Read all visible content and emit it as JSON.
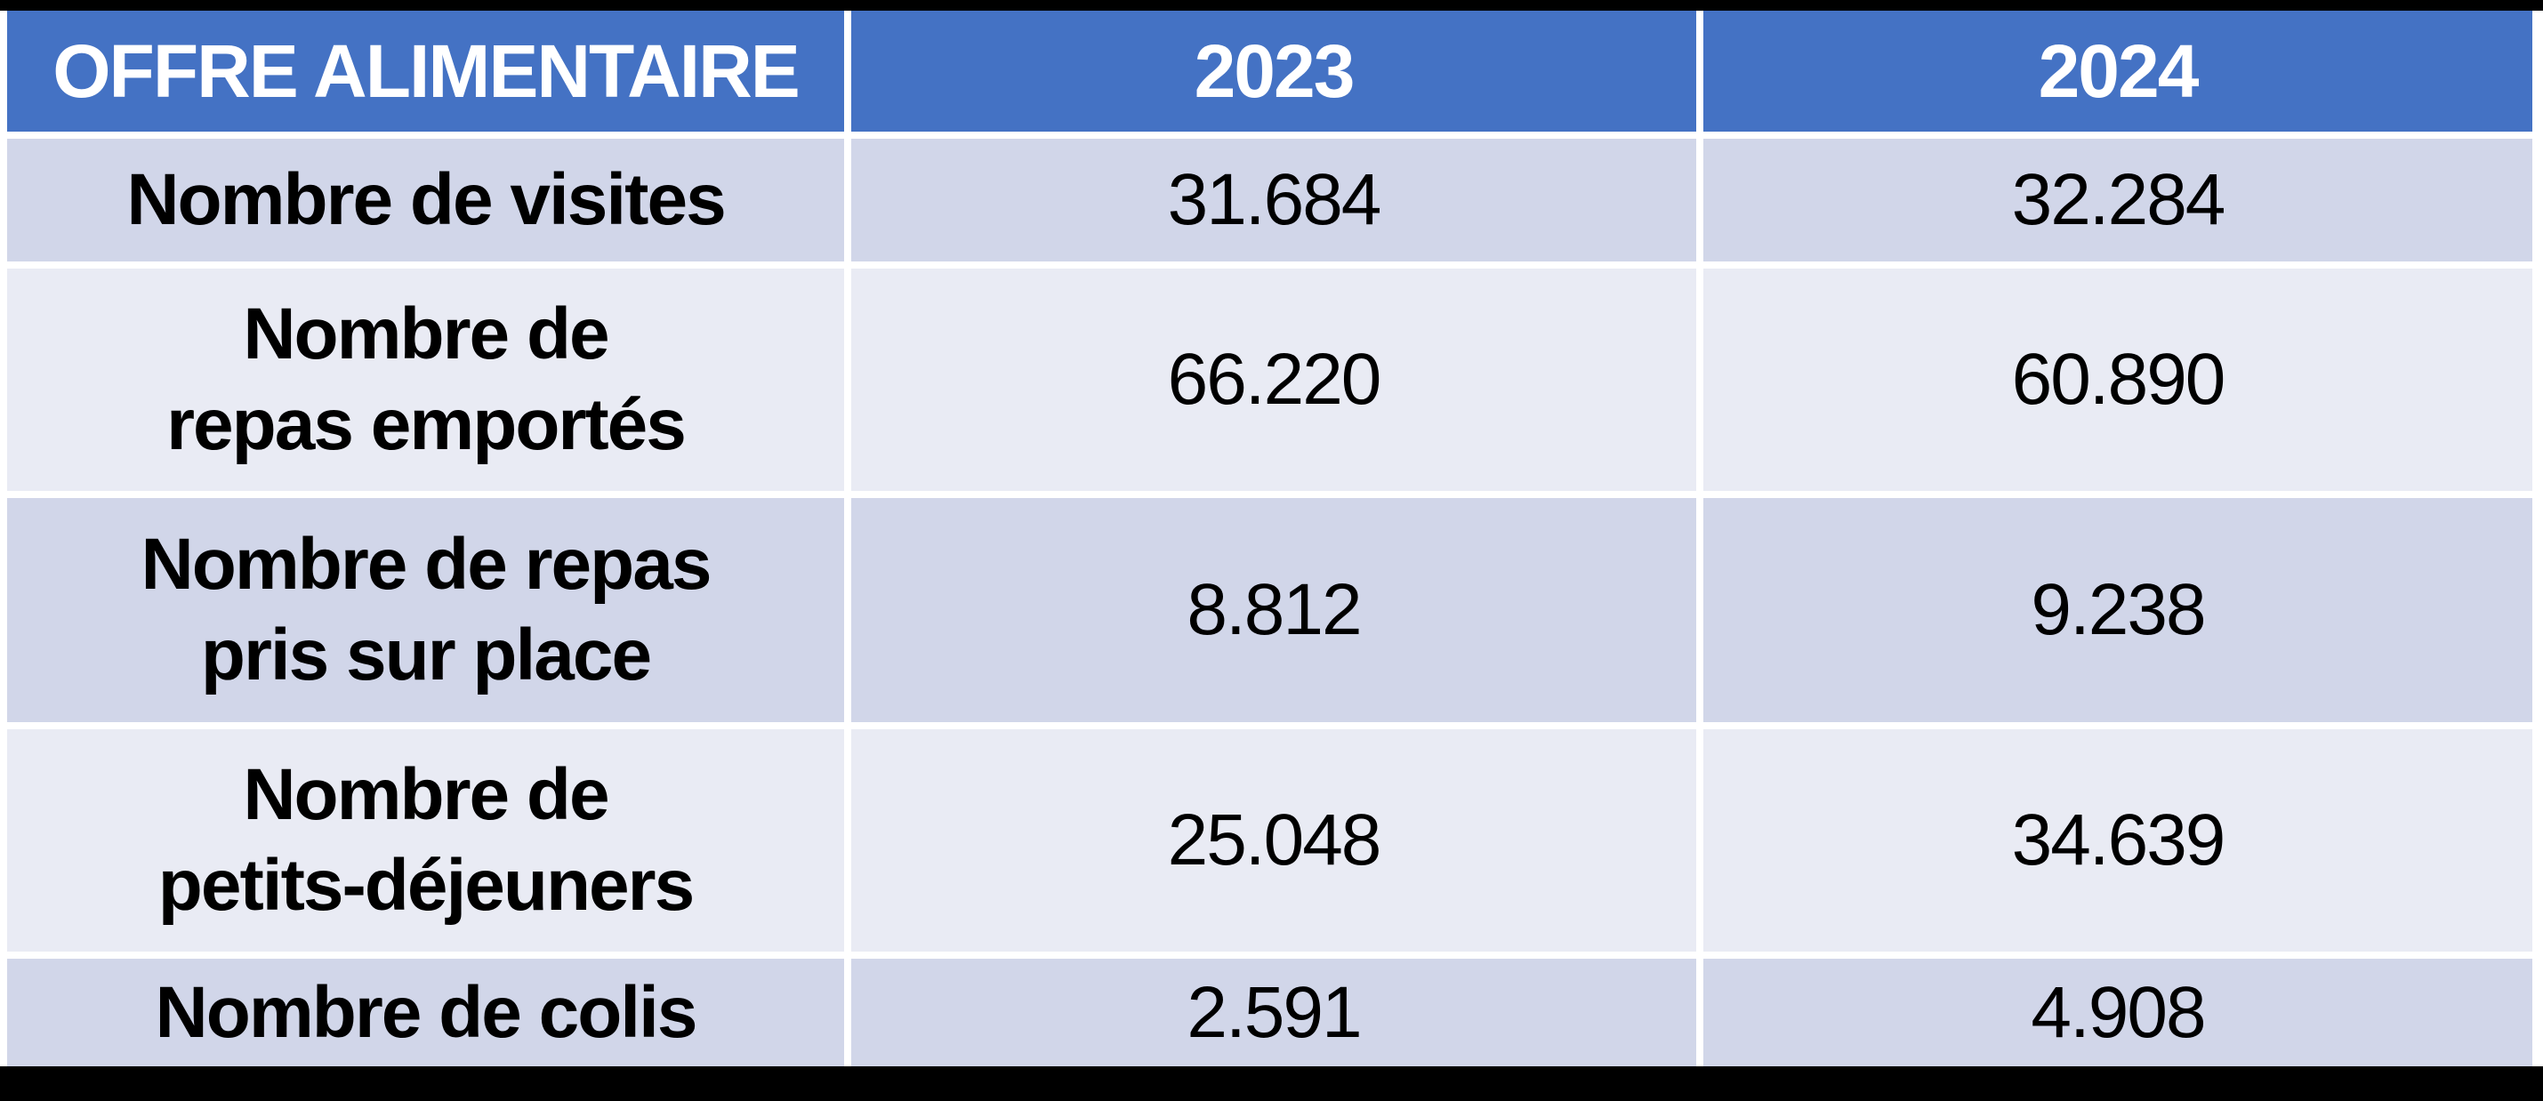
{
  "colors": {
    "header_bg": "#4472C4",
    "header_text": "#FFFFFF",
    "row_band_dark": "#D1D6E9",
    "row_band_light": "#E9EBF4",
    "cell_gutter": "#FFFFFF",
    "letterbox": "#000000",
    "body_text": "#000000"
  },
  "table": {
    "header": [
      "OFFRE ALIMENTAIRE",
      "2023",
      "2024"
    ],
    "rows": [
      {
        "label": "Nombre de visites",
        "values": [
          "31.684",
          "32.284"
        ]
      },
      {
        "label": "Nombre de\nrepas emportés",
        "values": [
          "66.220",
          "60.890"
        ]
      },
      {
        "label": "Nombre de repas\npris sur place",
        "values": [
          "8.812",
          "9.238"
        ]
      },
      {
        "label": "Nombre de\npetits-déjeuners",
        "values": [
          "25.048",
          "34.639"
        ]
      },
      {
        "label": "Nombre de colis",
        "values": [
          "2.591",
          "4.908"
        ]
      }
    ]
  },
  "chart_data": {
    "type": "table",
    "title": "OFFRE ALIMENTAIRE",
    "columns": [
      "OFFRE ALIMENTAIRE",
      "2023",
      "2024"
    ],
    "rows": [
      [
        "Nombre de visites",
        "31.684",
        "32.284"
      ],
      [
        "Nombre de repas emportés",
        "66.220",
        "60.890"
      ],
      [
        "Nombre de repas pris sur place",
        "8.812",
        "9.238"
      ],
      [
        "Nombre de petits-déjeuners",
        "25.048",
        "34.639"
      ],
      [
        "Nombre de colis",
        "2.591",
        "4.908"
      ]
    ],
    "categories": [
      "Nombre de visites",
      "Nombre de repas emportés",
      "Nombre de repas pris sur place",
      "Nombre de petits-déjeuners",
      "Nombre de colis"
    ],
    "series": [
      {
        "name": "2023",
        "values": [
          31684,
          66220,
          8812,
          25048,
          2591
        ]
      },
      {
        "name": "2024",
        "values": [
          32284,
          60890,
          9238,
          34639,
          4908
        ]
      }
    ],
    "layout_hints": {
      "banded_rows": true,
      "header_fill": "#4472C4",
      "band_fills": [
        "#D1D6E9",
        "#E9EBF4"
      ]
    }
  }
}
